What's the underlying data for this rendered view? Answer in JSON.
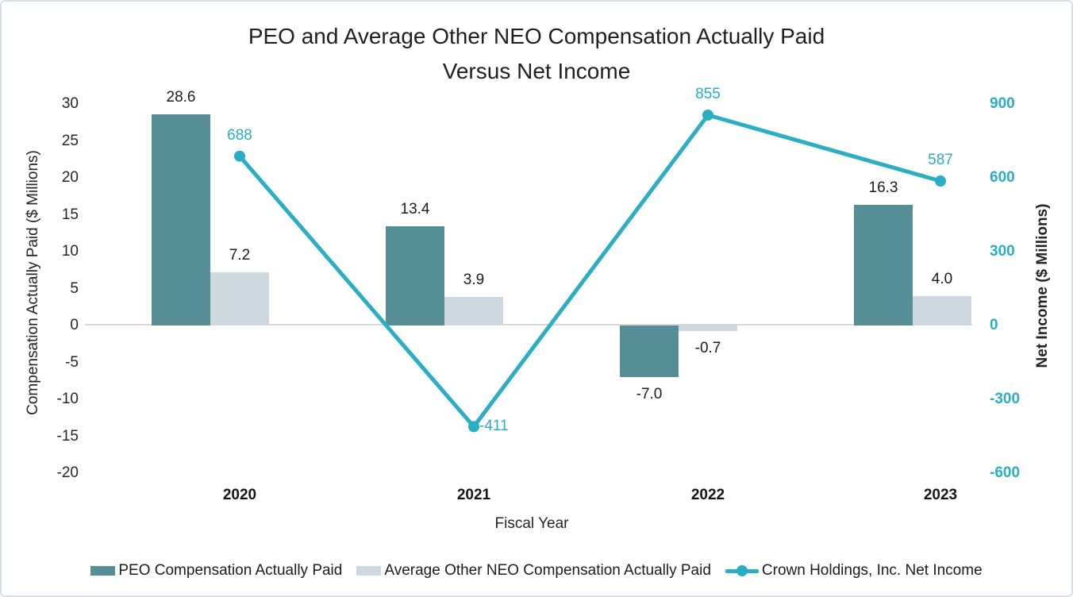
{
  "title": {
    "line1": "PEO and Average Other NEO Compensation Actually Paid",
    "line2": "Versus Net Income"
  },
  "chart_data": {
    "type": "combo-bar-line",
    "categories": [
      "2020",
      "2021",
      "2022",
      "2023"
    ],
    "series": [
      {
        "id": "peo",
        "name": "PEO Compensation Actually Paid",
        "type": "bar",
        "axis": "left",
        "color": "#558E96",
        "values": [
          28.6,
          13.4,
          -7.0,
          16.3
        ],
        "labels": [
          "28.6",
          "13.4",
          "-7.0",
          "16.3"
        ]
      },
      {
        "id": "neo",
        "name": "Average Other NEO Compensation Actually Paid",
        "type": "bar",
        "axis": "left",
        "color": "#CDD9DE",
        "values": [
          7.2,
          3.9,
          -0.7,
          4.0
        ],
        "labels": [
          "7.2",
          "3.9",
          "-0.7",
          "4.0"
        ]
      },
      {
        "id": "net-income",
        "name": "Crown Holdings, Inc. Net Income",
        "type": "line",
        "axis": "right",
        "color": "#2AAEC3",
        "values": [
          688,
          -411,
          855,
          587
        ],
        "labels": [
          "688",
          "-411",
          "855",
          "587"
        ],
        "label_positions": [
          "above",
          "right",
          "above",
          "above"
        ]
      }
    ],
    "left_axis": {
      "title": "Compensation Actually Paid ($ Millions)",
      "ticks": [
        30,
        25,
        20,
        15,
        10,
        5,
        0,
        -5,
        -10,
        -15,
        -20
      ],
      "range": [
        -20,
        30
      ]
    },
    "right_axis": {
      "title": "Net Income ($ Millions)",
      "ticks": [
        900,
        600,
        300,
        0,
        -300,
        -600
      ],
      "range": [
        -600,
        900
      ],
      "color": "#2AAEC3"
    },
    "x_axis": {
      "title": "Fiscal Year"
    },
    "legend_position": "bottom",
    "grid": false
  }
}
